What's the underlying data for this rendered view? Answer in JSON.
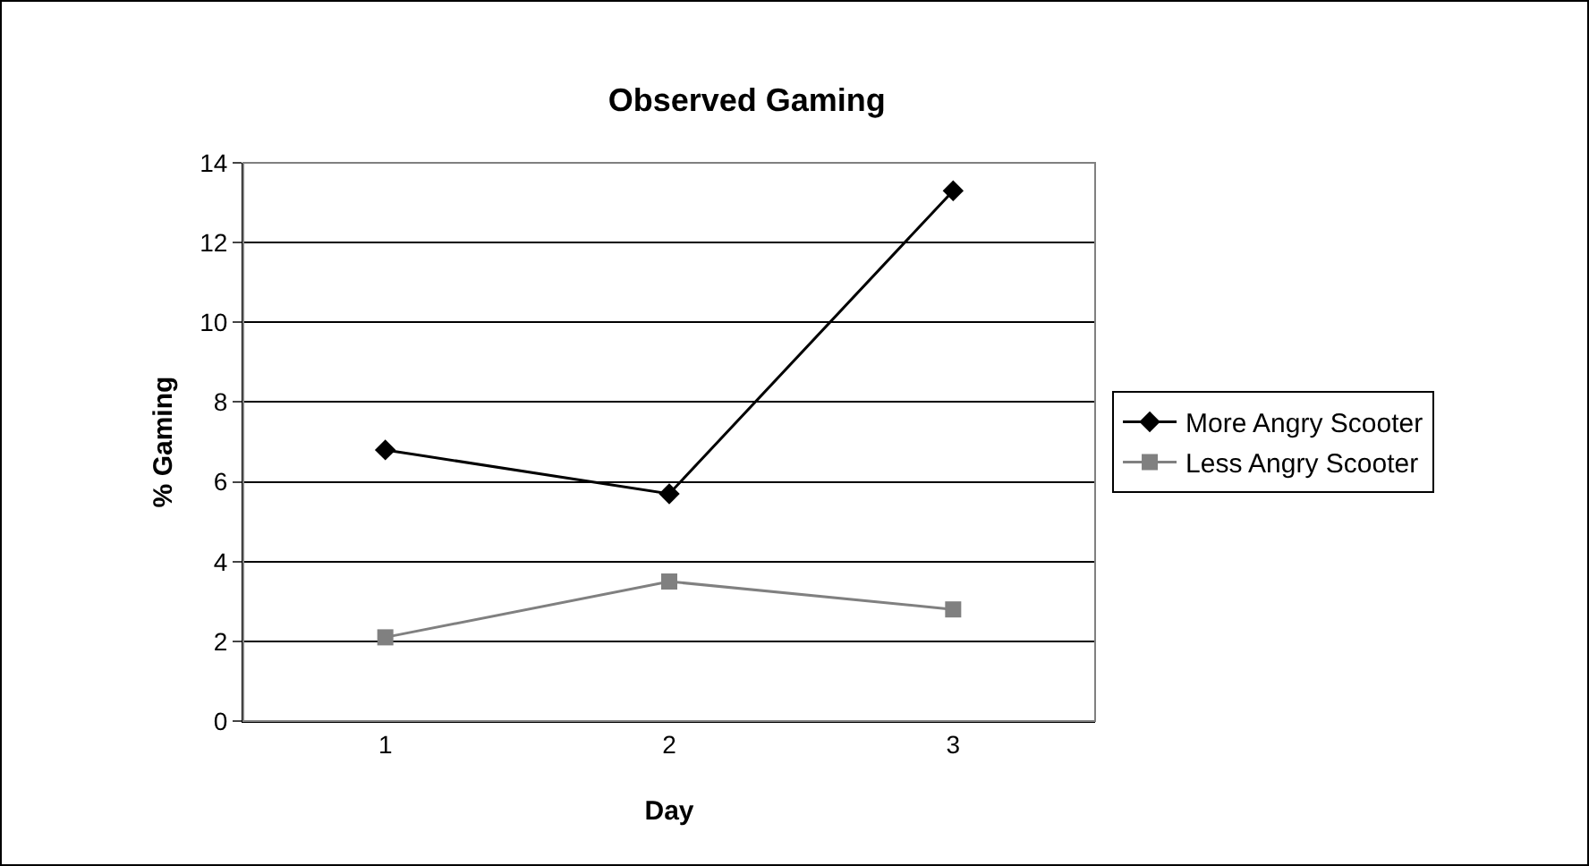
{
  "chart_data": {
    "type": "line",
    "title": "Observed Gaming",
    "xlabel": "Day",
    "ylabel": "% Gaming",
    "categories": [
      "1",
      "2",
      "3"
    ],
    "series": [
      {
        "name": "More Angry Scooter",
        "color": "#000000",
        "marker": "diamond",
        "values": [
          6.8,
          5.7,
          13.3
        ]
      },
      {
        "name": "Less Angry Scooter",
        "color": "#808080",
        "marker": "square",
        "values": [
          2.1,
          3.5,
          2.8
        ]
      }
    ],
    "ylim": [
      0,
      14
    ],
    "yticks": [
      0,
      2,
      4,
      6,
      8,
      10,
      12,
      14
    ],
    "grid": "y",
    "legend": "right",
    "line_style": "solid"
  }
}
